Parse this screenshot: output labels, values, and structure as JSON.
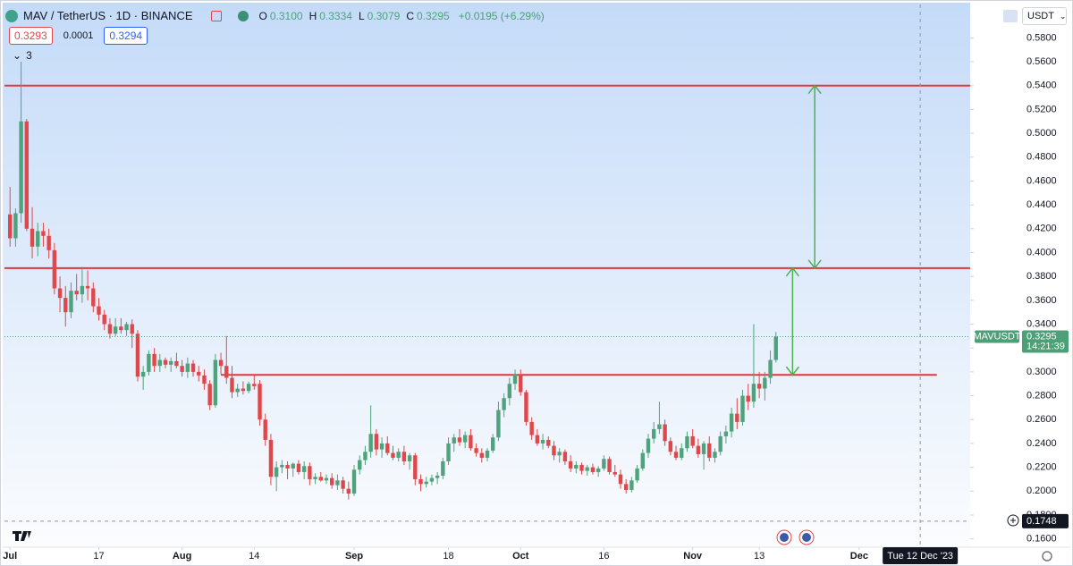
{
  "chart_data": {
    "type": "candlestick",
    "title": "MAV / TetherUS · 1D · BINANCE",
    "ohlc_legend": [
      {
        "key": "O",
        "value": "0.3100"
      },
      {
        "key": "H",
        "value": "0.3334"
      },
      {
        "key": "L",
        "value": "0.3079"
      },
      {
        "key": "C",
        "value": "0.3295"
      }
    ],
    "change": "+0.0195 (+6.29%)",
    "bid": "0.3293",
    "spread": "0.0001",
    "ask": "0.3294",
    "indicators_count": "3",
    "currency": "USDT",
    "up_color": "#4fa37c",
    "down_color": "#e0474b",
    "x": [
      "2023-07-01",
      "2023-07-02",
      "2023-07-03",
      "2023-07-04",
      "2023-07-05",
      "2023-07-06",
      "2023-07-07",
      "2023-07-08",
      "2023-07-09",
      "2023-07-10",
      "2023-07-11",
      "2023-07-12",
      "2023-07-13",
      "2023-07-14",
      "2023-07-15",
      "2023-07-16",
      "2023-07-17",
      "2023-07-18",
      "2023-07-19",
      "2023-07-20",
      "2023-07-21",
      "2023-07-22",
      "2023-07-23",
      "2023-07-24",
      "2023-07-25",
      "2023-07-26",
      "2023-07-27",
      "2023-07-28",
      "2023-07-29",
      "2023-07-30",
      "2023-07-31",
      "2023-08-01",
      "2023-08-02",
      "2023-08-03",
      "2023-08-04",
      "2023-08-05",
      "2023-08-06",
      "2023-08-07",
      "2023-08-08",
      "2023-08-09",
      "2023-08-10",
      "2023-08-11",
      "2023-08-12",
      "2023-08-13",
      "2023-08-14",
      "2023-08-15",
      "2023-08-16",
      "2023-08-17",
      "2023-08-18",
      "2023-08-19",
      "2023-08-20",
      "2023-08-21",
      "2023-08-22",
      "2023-08-23",
      "2023-08-24",
      "2023-08-25",
      "2023-08-26",
      "2023-08-27",
      "2023-08-28",
      "2023-08-29",
      "2023-08-30",
      "2023-08-31",
      "2023-09-01",
      "2023-09-02",
      "2023-09-03",
      "2023-09-04",
      "2023-09-05",
      "2023-09-06",
      "2023-09-07",
      "2023-09-08",
      "2023-09-09",
      "2023-09-10",
      "2023-09-11",
      "2023-09-12",
      "2023-09-13",
      "2023-09-14",
      "2023-09-15",
      "2023-09-16",
      "2023-09-17",
      "2023-09-18",
      "2023-09-19",
      "2023-09-20",
      "2023-09-21",
      "2023-09-22",
      "2023-09-23",
      "2023-09-24",
      "2023-09-25",
      "2023-09-26",
      "2023-09-27",
      "2023-09-28",
      "2023-09-29",
      "2023-09-30",
      "2023-10-01",
      "2023-10-02",
      "2023-10-03",
      "2023-10-04",
      "2023-10-05",
      "2023-10-06",
      "2023-10-07",
      "2023-10-08",
      "2023-10-09",
      "2023-10-10",
      "2023-10-11",
      "2023-10-12",
      "2023-10-13",
      "2023-10-14",
      "2023-10-15",
      "2023-10-16",
      "2023-10-17",
      "2023-10-18",
      "2023-10-19",
      "2023-10-20",
      "2023-10-21",
      "2023-10-22",
      "2023-10-23",
      "2023-10-24",
      "2023-10-25",
      "2023-10-26",
      "2023-10-27",
      "2023-10-28",
      "2023-10-29",
      "2023-10-30",
      "2023-10-31",
      "2023-11-01",
      "2023-11-02",
      "2023-11-03",
      "2023-11-04",
      "2023-11-05",
      "2023-11-06",
      "2023-11-07",
      "2023-11-08",
      "2023-11-09",
      "2023-11-10",
      "2023-11-11",
      "2023-11-12",
      "2023-11-13",
      "2023-11-14",
      "2023-11-15",
      "2023-11-16"
    ],
    "open": [
      0.432,
      0.412,
      0.433,
      0.51,
      0.42,
      0.405,
      0.418,
      0.414,
      0.402,
      0.37,
      0.362,
      0.35,
      0.368,
      0.365,
      0.372,
      0.37,
      0.355,
      0.348,
      0.34,
      0.332,
      0.338,
      0.335,
      0.34,
      0.332,
      0.296,
      0.3,
      0.315,
      0.305,
      0.31,
      0.306,
      0.309,
      0.305,
      0.3,
      0.307,
      0.3,
      0.297,
      0.29,
      0.272,
      0.31,
      0.305,
      0.295,
      0.283,
      0.286,
      0.284,
      0.29,
      0.29,
      0.26,
      0.243,
      0.212,
      0.22,
      0.222,
      0.219,
      0.223,
      0.216,
      0.221,
      0.21,
      0.212,
      0.209,
      0.211,
      0.205,
      0.209,
      0.202,
      0.198,
      0.218,
      0.226,
      0.233,
      0.248,
      0.235,
      0.24,
      0.232,
      0.228,
      0.233,
      0.225,
      0.23,
      0.21,
      0.206,
      0.208,
      0.211,
      0.213,
      0.225,
      0.24,
      0.245,
      0.241,
      0.247,
      0.236,
      0.232,
      0.228,
      0.234,
      0.245,
      0.268,
      0.278,
      0.29,
      0.298,
      0.283,
      0.258,
      0.247,
      0.24,
      0.243,
      0.238,
      0.23,
      0.233,
      0.225,
      0.219,
      0.222,
      0.217,
      0.22,
      0.216,
      0.219,
      0.227,
      0.216,
      0.214,
      0.206,
      0.201,
      0.209,
      0.219,
      0.232,
      0.244,
      0.252,
      0.256,
      0.242,
      0.233,
      0.228,
      0.236,
      0.246,
      0.238,
      0.231,
      0.24,
      0.228,
      0.233,
      0.246,
      0.25,
      0.265,
      0.258,
      0.28,
      0.275,
      0.29,
      0.286,
      0.295,
      0.31
    ],
    "high": [
      0.455,
      0.437,
      0.56,
      0.512,
      0.438,
      0.425,
      0.425,
      0.42,
      0.408,
      0.38,
      0.372,
      0.375,
      0.382,
      0.388,
      0.385,
      0.375,
      0.362,
      0.352,
      0.345,
      0.345,
      0.345,
      0.342,
      0.344,
      0.335,
      0.305,
      0.318,
      0.32,
      0.315,
      0.312,
      0.312,
      0.316,
      0.31,
      0.312,
      0.31,
      0.305,
      0.302,
      0.293,
      0.315,
      0.316,
      0.33,
      0.305,
      0.29,
      0.292,
      0.292,
      0.297,
      0.293,
      0.265,
      0.248,
      0.225,
      0.226,
      0.225,
      0.224,
      0.226,
      0.225,
      0.224,
      0.215,
      0.216,
      0.214,
      0.215,
      0.214,
      0.212,
      0.208,
      0.222,
      0.23,
      0.238,
      0.272,
      0.252,
      0.245,
      0.246,
      0.238,
      0.236,
      0.238,
      0.232,
      0.232,
      0.214,
      0.212,
      0.214,
      0.216,
      0.228,
      0.245,
      0.248,
      0.252,
      0.25,
      0.252,
      0.24,
      0.236,
      0.236,
      0.248,
      0.275,
      0.282,
      0.295,
      0.302,
      0.302,
      0.285,
      0.262,
      0.252,
      0.248,
      0.246,
      0.242,
      0.236,
      0.235,
      0.23,
      0.225,
      0.224,
      0.222,
      0.223,
      0.221,
      0.23,
      0.229,
      0.222,
      0.218,
      0.21,
      0.212,
      0.222,
      0.235,
      0.248,
      0.258,
      0.275,
      0.26,
      0.245,
      0.238,
      0.24,
      0.25,
      0.252,
      0.244,
      0.242,
      0.246,
      0.236,
      0.25,
      0.255,
      0.27,
      0.278,
      0.285,
      0.29,
      0.34,
      0.3,
      0.3,
      0.318,
      0.3334
    ],
    "low": [
      0.405,
      0.405,
      0.425,
      0.418,
      0.395,
      0.397,
      0.405,
      0.395,
      0.365,
      0.35,
      0.338,
      0.345,
      0.36,
      0.358,
      0.36,
      0.35,
      0.343,
      0.335,
      0.328,
      0.33,
      0.332,
      0.33,
      0.32,
      0.292,
      0.285,
      0.297,
      0.3,
      0.3,
      0.303,
      0.3,
      0.303,
      0.296,
      0.295,
      0.296,
      0.292,
      0.285,
      0.268,
      0.27,
      0.298,
      0.29,
      0.278,
      0.279,
      0.281,
      0.282,
      0.285,
      0.255,
      0.238,
      0.205,
      0.2,
      0.215,
      0.21,
      0.212,
      0.214,
      0.21,
      0.205,
      0.206,
      0.208,
      0.206,
      0.202,
      0.201,
      0.198,
      0.193,
      0.196,
      0.214,
      0.222,
      0.228,
      0.23,
      0.228,
      0.23,
      0.226,
      0.225,
      0.222,
      0.218,
      0.205,
      0.2,
      0.203,
      0.205,
      0.206,
      0.21,
      0.222,
      0.233,
      0.238,
      0.236,
      0.234,
      0.229,
      0.224,
      0.225,
      0.232,
      0.242,
      0.262,
      0.272,
      0.285,
      0.28,
      0.255,
      0.243,
      0.238,
      0.235,
      0.236,
      0.226,
      0.224,
      0.222,
      0.216,
      0.215,
      0.214,
      0.213,
      0.214,
      0.212,
      0.217,
      0.214,
      0.212,
      0.202,
      0.198,
      0.199,
      0.207,
      0.217,
      0.228,
      0.24,
      0.248,
      0.238,
      0.23,
      0.226,
      0.226,
      0.233,
      0.236,
      0.228,
      0.218,
      0.225,
      0.224,
      0.23,
      0.24,
      0.245,
      0.252,
      0.255,
      0.268,
      0.27,
      0.278,
      0.276,
      0.29,
      0.3079
    ],
    "close": [
      0.412,
      0.433,
      0.51,
      0.42,
      0.405,
      0.418,
      0.414,
      0.402,
      0.37,
      0.362,
      0.35,
      0.368,
      0.365,
      0.372,
      0.37,
      0.355,
      0.348,
      0.34,
      0.332,
      0.338,
      0.335,
      0.34,
      0.332,
      0.296,
      0.3,
      0.315,
      0.305,
      0.31,
      0.306,
      0.309,
      0.305,
      0.3,
      0.307,
      0.3,
      0.297,
      0.29,
      0.272,
      0.31,
      0.305,
      0.295,
      0.283,
      0.286,
      0.284,
      0.29,
      0.288,
      0.26,
      0.243,
      0.212,
      0.22,
      0.222,
      0.219,
      0.223,
      0.216,
      0.221,
      0.21,
      0.212,
      0.209,
      0.211,
      0.205,
      0.209,
      0.202,
      0.198,
      0.218,
      0.226,
      0.233,
      0.248,
      0.235,
      0.24,
      0.232,
      0.228,
      0.233,
      0.225,
      0.23,
      0.21,
      0.206,
      0.208,
      0.211,
      0.213,
      0.225,
      0.24,
      0.245,
      0.241,
      0.247,
      0.236,
      0.232,
      0.228,
      0.234,
      0.245,
      0.268,
      0.278,
      0.29,
      0.298,
      0.283,
      0.258,
      0.247,
      0.24,
      0.243,
      0.238,
      0.23,
      0.233,
      0.225,
      0.219,
      0.222,
      0.217,
      0.22,
      0.216,
      0.219,
      0.227,
      0.216,
      0.214,
      0.206,
      0.201,
      0.209,
      0.219,
      0.232,
      0.244,
      0.252,
      0.256,
      0.242,
      0.233,
      0.228,
      0.236,
      0.246,
      0.238,
      0.231,
      0.24,
      0.228,
      0.233,
      0.246,
      0.25,
      0.265,
      0.258,
      0.28,
      0.275,
      0.29,
      0.286,
      0.295,
      0.31,
      0.3295
    ],
    "xlim": [
      "2023-06-30",
      "2023-12-21"
    ],
    "xticks": [
      {
        "value": "2023-07-01",
        "label": "Jul"
      },
      {
        "value": "2023-07-17",
        "label": "17"
      },
      {
        "value": "2023-08-01",
        "label": "Aug"
      },
      {
        "value": "2023-08-14",
        "label": "14"
      },
      {
        "value": "2023-09-01",
        "label": "Sep"
      },
      {
        "value": "2023-09-18",
        "label": "18"
      },
      {
        "value": "2023-10-01",
        "label": "Oct"
      },
      {
        "value": "2023-10-16",
        "label": "16"
      },
      {
        "value": "2023-11-01",
        "label": "Nov"
      },
      {
        "value": "2023-11-13",
        "label": "13"
      },
      {
        "value": "2023-12-01",
        "label": "Dec"
      }
    ],
    "ylim": [
      0.153,
      0.608
    ],
    "yticks": [
      {
        "value": 0.16,
        "label": "0.1600"
      },
      {
        "value": 0.18,
        "label": "0.1800"
      },
      {
        "value": 0.2,
        "label": "0.2000"
      },
      {
        "value": 0.22,
        "label": "0.2200"
      },
      {
        "value": 0.24,
        "label": "0.2400"
      },
      {
        "value": 0.26,
        "label": "0.2600"
      },
      {
        "value": 0.28,
        "label": "0.2800"
      },
      {
        "value": 0.3,
        "label": "0.3000"
      },
      {
        "value": 0.32,
        "label": "0.3200"
      },
      {
        "value": 0.34,
        "label": "0.3400"
      },
      {
        "value": 0.36,
        "label": "0.3600"
      },
      {
        "value": 0.38,
        "label": "0.3800"
      },
      {
        "value": 0.4,
        "label": "0.4000"
      },
      {
        "value": 0.42,
        "label": "0.4200"
      },
      {
        "value": 0.44,
        "label": "0.4400"
      },
      {
        "value": 0.46,
        "label": "0.4600"
      },
      {
        "value": 0.48,
        "label": "0.4800"
      },
      {
        "value": 0.5,
        "label": "0.5000"
      },
      {
        "value": 0.52,
        "label": "0.5200"
      },
      {
        "value": 0.54,
        "label": "0.5400"
      },
      {
        "value": 0.56,
        "label": "0.5600"
      },
      {
        "value": 0.58,
        "label": "0.5800"
      }
    ],
    "grid": false,
    "levels": [
      {
        "value": 0.54,
        "color": "#e0383c"
      },
      {
        "value": 0.387,
        "color": "#e0383c"
      },
      {
        "value": 0.2975,
        "color": "#e0383c",
        "from": "2023-08-08",
        "to": "2023-12-15"
      }
    ],
    "arrows": [
      {
        "x": "2023-11-23",
        "from": 0.54,
        "to": 0.387,
        "color": "#4caf50"
      },
      {
        "x": "2023-11-19",
        "from": 0.387,
        "to": 0.2975,
        "color": "#4caf50"
      }
    ],
    "last_price": {
      "label": "MAVUSDT",
      "value": 0.3295,
      "countdown": "14:21:39",
      "color": "#4c9f76"
    },
    "crosshair": {
      "price": 0.1748,
      "x": "2023-12-12",
      "x_label": "Tue 12 Dec '23"
    }
  }
}
